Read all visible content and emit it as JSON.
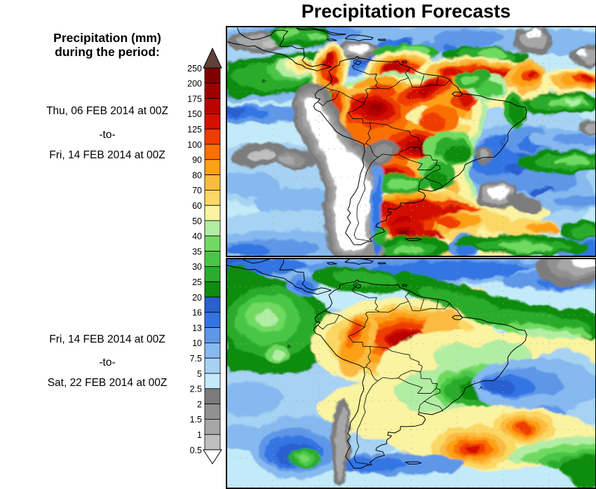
{
  "title": "Precipitation Forecasts",
  "sidebar": {
    "heading_line1": "Precipitation (mm)",
    "heading_line2": "during the period:",
    "period1": {
      "from": "Thu, 06 FEB 2014 at 00Z",
      "separator": "-to-",
      "to": "Fri, 14 FEB 2014 at 00Z"
    },
    "period2": {
      "from": "Fri, 14 FEB 2014 at 00Z",
      "separator": "-to-",
      "to": "Sat, 22 FEB 2014 at 00Z"
    }
  },
  "colorbar": {
    "unit": "mm",
    "boundary_labels": [
      "250",
      "200",
      "175",
      "150",
      "125",
      "100",
      "90",
      "80",
      "70",
      "60",
      "50",
      "40",
      "35",
      "30",
      "25",
      "20",
      "16",
      "13",
      "10",
      "7.5",
      "5",
      "2.5",
      "2",
      "1.5",
      "1",
      "0.5"
    ],
    "above_top_color": "#5E423A",
    "below_bottom_color": "#FFFFFF",
    "segment_colors_top_to_bottom": [
      "#7F0000",
      "#9C0000",
      "#BA0400",
      "#D31000",
      "#EF3D00",
      "#FA7000",
      "#FCA018",
      "#FBBB3F",
      "#FBD763",
      "#FAF3A0",
      "#B2EDA4",
      "#70DA60",
      "#49C645",
      "#2CAC2C",
      "#108C10",
      "#2A5FD0",
      "#3374E3",
      "#5E97E8",
      "#85B9EF",
      "#A6D2F3",
      "#C2EAF8",
      "#7B7B7B",
      "#909090",
      "#A7A7A7",
      "#BFBFBF"
    ]
  },
  "maps": [
    {
      "name": "precipitation-map-week1",
      "region": "South America",
      "period_from": "Thu, 06 FEB 2014 at 00Z",
      "period_to": "Fri, 14 FEB 2014 at 00Z"
    },
    {
      "name": "precipitation-map-week2",
      "region": "South America",
      "period_from": "Fri, 14 FEB 2014 at 00Z",
      "period_to": "Sat, 22 FEB 2014 at 00Z"
    }
  ]
}
